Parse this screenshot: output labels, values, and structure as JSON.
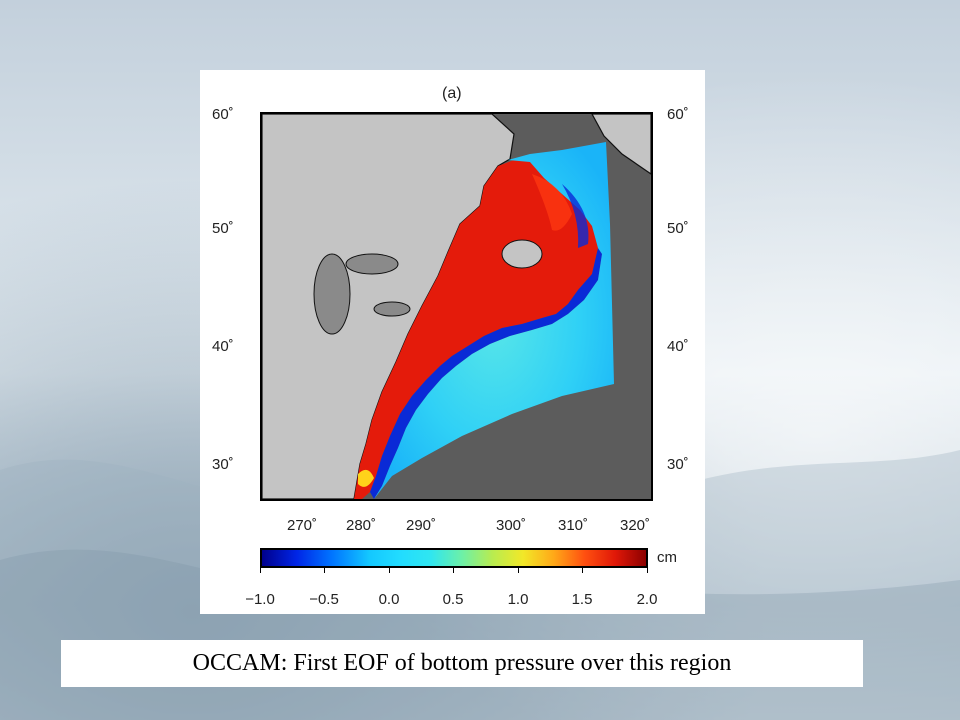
{
  "figure": {
    "panel_label": "(a)",
    "lat_ticks": [
      "60˚",
      "50˚",
      "40˚",
      "30˚"
    ],
    "lon_ticks": [
      "270˚",
      "280˚",
      "290˚",
      "300˚",
      "310˚",
      "320˚"
    ],
    "colorbar": {
      "unit": "cm",
      "ticks": [
        "−1.0",
        "−0.5",
        "0.0",
        "0.5",
        "1.0",
        "1.5",
        "2.0"
      ],
      "range": [
        -1.0,
        2.0
      ]
    },
    "colors": {
      "land": "#c4c4c4",
      "ocean_outside": "#5c5c5c",
      "coast_high": "#e41b0b",
      "coast_low": "#0a2ad6",
      "deep": "#2fd7f4"
    }
  },
  "caption": "OCCAM: First EOF of bottom pressure over this region"
}
